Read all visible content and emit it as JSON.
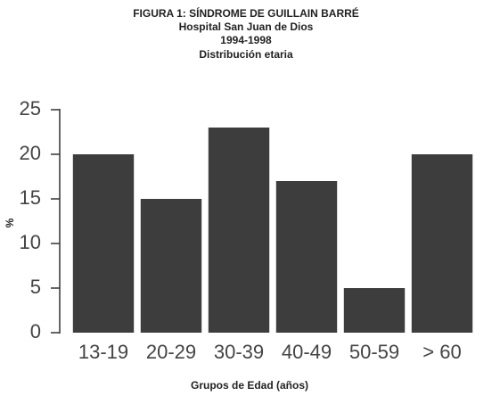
{
  "chart_data": {
    "type": "bar",
    "title": [
      "FIGURA 1: SÍNDROME DE GUILLAIN BARRÉ",
      "Hospital San Juan de Dios",
      "1994-1998",
      "Distribución etaria"
    ],
    "categories": [
      "13-19",
      "20-29",
      "30-39",
      "40-49",
      "50-59",
      "> 60"
    ],
    "values": [
      20,
      15,
      23,
      17,
      5,
      20
    ],
    "color": "#3d3d3d",
    "ylim": [
      0,
      25
    ],
    "yticks": [
      0,
      5,
      10,
      15,
      20,
      25
    ],
    "y_label": "%",
    "x_label": "Grupos de Edad (años)",
    "grid": false
  }
}
